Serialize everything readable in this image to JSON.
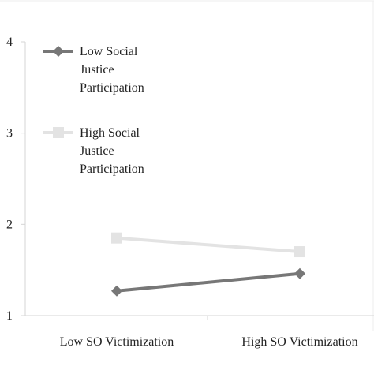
{
  "chart_data": {
    "type": "line",
    "title": "",
    "xlabel": "",
    "ylabel": "",
    "categories": [
      "Low SO Victimization",
      "High SO Victimization"
    ],
    "ylim": [
      1,
      4
    ],
    "yticks": [
      "1",
      "2",
      "3",
      "4"
    ],
    "grid": false,
    "legend_position": "top-left",
    "series": [
      {
        "name": "Low Social Justice Participation",
        "legend_lines": [
          "Low Social",
          "Justice",
          "Participation"
        ],
        "values": [
          1.27,
          1.46
        ],
        "color": "#777777",
        "marker": "diamond"
      },
      {
        "name": "High Social Justice Participation",
        "legend_lines": [
          "High Social",
          "Justice",
          "Participation"
        ],
        "values": [
          1.85,
          1.7
        ],
        "color": "#e3e3e3",
        "marker": "square"
      }
    ]
  }
}
